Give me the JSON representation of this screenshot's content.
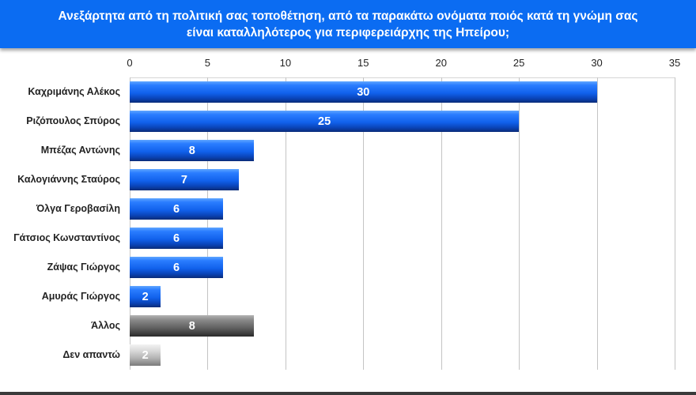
{
  "header": {
    "title": "Ανεξάρτητα από τη πολιτική σας τοποθέτηση, από τα παρακάτω ονόματα ποιός κατά τη γνώμη σας είναι καταλληλότερος για περιφερειάρχης της  Ηπείρου;"
  },
  "colors": {
    "header": "#0b6cf2",
    "bar_blue": "#1161ec",
    "bar_dark_gray": "#606060",
    "bar_light_gray": "#b3b3b3"
  },
  "chart_data": {
    "type": "bar",
    "orientation": "horizontal",
    "title": "Ανεξάρτητα από τη πολιτική σας τοποθέτηση, από τα παρακάτω ονόματα ποιός κατά τη γνώμη σας είναι καταλληλότερος για περιφερειάρχης της  Ηπείρου;",
    "xlabel": "",
    "ylabel": "",
    "xlim": [
      0,
      35
    ],
    "x_ticks": [
      "0",
      "5",
      "10",
      "15",
      "20",
      "25",
      "30",
      "35"
    ],
    "x_axis_position": "top",
    "grid": true,
    "legend": false,
    "categories": [
      "Καχριμάνης Αλέκος",
      "Ριζόπουλος Σπύρος",
      "Μπέζας Αντώνης",
      "Καλογιάννης Σταύρος",
      "Όλγα Γεροβασίλη",
      "Γάτσιος Κωνσταντίνος",
      "Ζάψας Γιώργος",
      "Αμυράς Γιώργος",
      "Άλλος",
      "Δεν απαντώ"
    ],
    "values": [
      30,
      25,
      8,
      7,
      6,
      6,
      6,
      2,
      8,
      2
    ],
    "data_labels": [
      "30",
      "25",
      "8",
      "7",
      "6",
      "6",
      "6",
      "2",
      "8",
      "2"
    ],
    "bar_styles": [
      "blue",
      "blue",
      "blue",
      "blue",
      "blue",
      "blue",
      "blue",
      "blue",
      "dark",
      "light"
    ]
  }
}
